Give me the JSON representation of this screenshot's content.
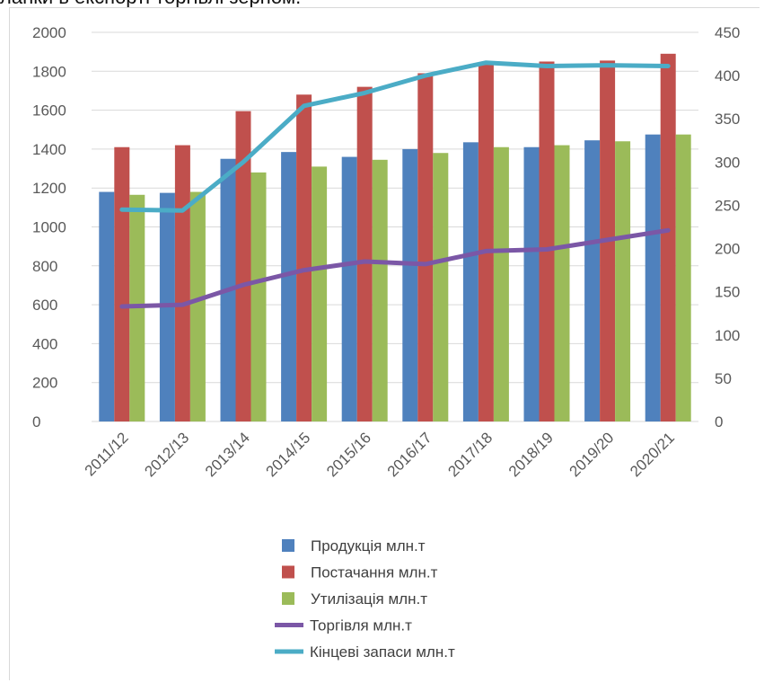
{
  "caption": "ланки в експорті торгівлі зерном.",
  "chart_data": {
    "type": "bar",
    "categories": [
      "2011/12",
      "2012/13",
      "2013/14",
      "2014/15",
      "2015/16",
      "2016/17",
      "2017/18",
      "2018/19",
      "2019/20",
      "2020/21"
    ],
    "y_left": {
      "range": [
        0,
        2000
      ],
      "ticks": [
        "0",
        "200",
        "400",
        "600",
        "800",
        "1000",
        "1200",
        "1400",
        "1600",
        "1800",
        "2000"
      ]
    },
    "y_right": {
      "range": [
        0,
        450
      ],
      "ticks": [
        "0",
        "50",
        "100",
        "150",
        "200",
        "250",
        "300",
        "350",
        "400",
        "450"
      ]
    },
    "grid": true,
    "legend_position": "bottom",
    "series": [
      {
        "name": "Продукція млн.т",
        "kind": "bar",
        "axis": "left",
        "color": "#4f81bd",
        "values": [
          1180,
          1175,
          1350,
          1385,
          1360,
          1400,
          1435,
          1410,
          1445,
          1475
        ]
      },
      {
        "name": "Постачання  млн.т",
        "kind": "bar",
        "axis": "left",
        "color": "#c0504d",
        "values": [
          1410,
          1420,
          1595,
          1680,
          1720,
          1790,
          1840,
          1850,
          1855,
          1890
        ]
      },
      {
        "name": "Утилізація млн.т",
        "kind": "bar",
        "axis": "left",
        "color": "#9bbb59",
        "values": [
          1165,
          1180,
          1280,
          1310,
          1345,
          1380,
          1410,
          1420,
          1440,
          1475
        ]
      },
      {
        "name": "Торгівля млн.т",
        "kind": "line",
        "axis": "right",
        "color": "#7b57a6",
        "values": [
          133,
          135,
          158,
          175,
          185,
          182,
          197,
          199,
          210,
          221
        ]
      },
      {
        "name": "Кінцеві запаси млн.т",
        "kind": "line",
        "axis": "right",
        "color": "#4bacc6",
        "values": [
          245,
          244,
          300,
          365,
          380,
          400,
          415,
          411,
          412,
          411
        ]
      }
    ]
  }
}
